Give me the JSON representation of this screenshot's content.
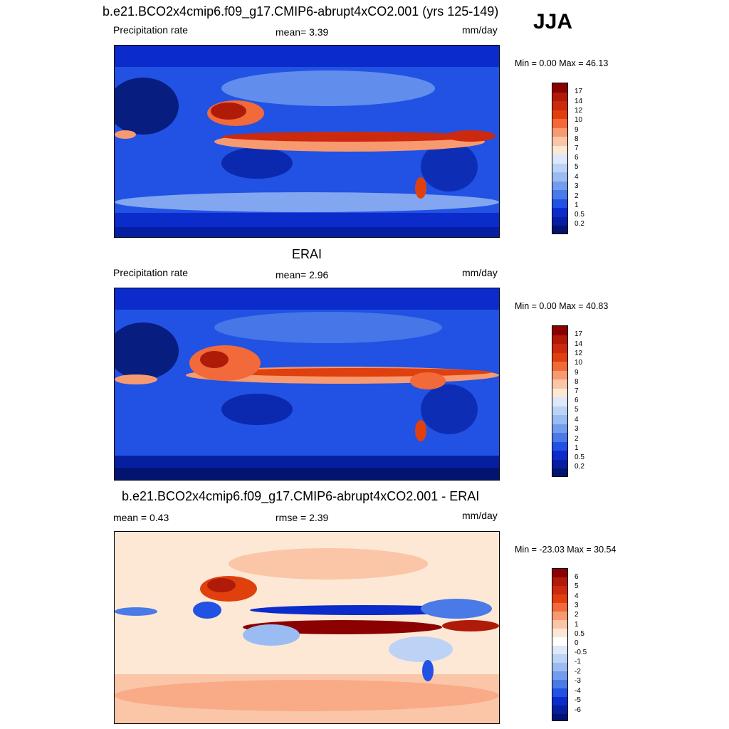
{
  "season": "JJA",
  "panels": [
    {
      "title": "b.e21.BCO2x4cmip6.f09_g17.CMIP6-abrupt4xCO2.001 (yrs 125-149)",
      "left_label": "Precipitation rate",
      "center_label": "mean=   3.39",
      "units": "mm/day",
      "minmax": "Min =   0.00 Max =  46.13"
    },
    {
      "title": "ERAI",
      "left_label": "Precipitation rate",
      "center_label": "mean=   2.96",
      "units": "mm/day",
      "minmax": "Min =   0.00 Max =  40.83"
    },
    {
      "title": "b.e21.BCO2x4cmip6.f09_g17.CMIP6-abrupt4xCO2.001 - ERAI",
      "left_label": "mean =   0.43",
      "center_label": "rmse =   2.39",
      "units": "mm/day",
      "minmax": "Min = -23.03 Max =  30.54"
    }
  ],
  "colorbars": {
    "precip": {
      "colors": [
        "#8b0000",
        "#b01a08",
        "#cc2a0e",
        "#e0400e",
        "#f26a3a",
        "#f79a70",
        "#fbc5a8",
        "#fde8d6",
        "#dde9fa",
        "#bdd3f6",
        "#9bbcf2",
        "#729ded",
        "#4a7ae8",
        "#2152e3",
        "#0b2cca",
        "#051fa0",
        "#02146f"
      ],
      "labels": [
        "17",
        "14",
        "12",
        "10",
        "9",
        "8",
        "7",
        "6",
        "5",
        "4",
        "3",
        "2",
        "1",
        "0.5",
        "0.2"
      ]
    },
    "diff": {
      "colors": [
        "#8b0000",
        "#b01a08",
        "#cc2a0e",
        "#e0400e",
        "#f26a3a",
        "#f79a70",
        "#fbc5a8",
        "#fde8d6",
        "#ffffff",
        "#dde9fa",
        "#bdd3f6",
        "#9bbcf2",
        "#729ded",
        "#4a7ae8",
        "#2152e3",
        "#0b2cca",
        "#051fa0",
        "#02146f"
      ],
      "labels": [
        "6",
        "5",
        "4",
        "3",
        "2",
        "1",
        "0.5",
        "0",
        "-0.5",
        "-1",
        "-2",
        "-3",
        "-4",
        "-5",
        "-6"
      ]
    }
  }
}
